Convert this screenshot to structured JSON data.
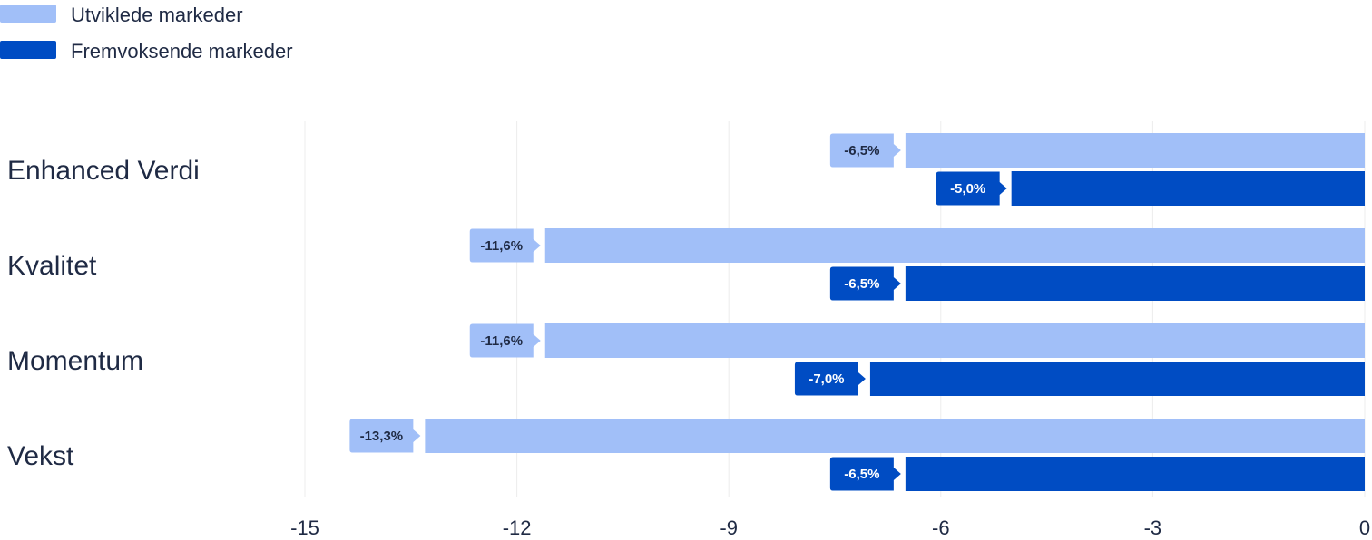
{
  "chart_data": {
    "type": "bar",
    "orientation": "horizontal",
    "categories": [
      "Enhanced Verdi",
      "Kvalitet",
      "Momentum",
      "Vekst"
    ],
    "series": [
      {
        "name": "Utviklede markeder",
        "values": [
          -6.5,
          -11.6,
          -11.6,
          -13.3
        ],
        "labels": [
          "-6,5%",
          "-11,6%",
          "-11,6%",
          "-13,3%"
        ],
        "color": "#a1bff8",
        "label_text_color": "#1f2a44"
      },
      {
        "name": "Fremvoksende markeder",
        "values": [
          -5.0,
          -6.5,
          -7.0,
          -6.5
        ],
        "labels": [
          "-5,0%",
          "-6,5%",
          "-7,0%",
          "-6,5%"
        ],
        "color": "#004cc3",
        "label_text_color": "#ffffff"
      }
    ],
    "xlim": [
      -15,
      0
    ],
    "xticks": [
      -15,
      -12,
      -9,
      -6,
      -3,
      0
    ],
    "grid": true,
    "legend_position": "top-left"
  }
}
